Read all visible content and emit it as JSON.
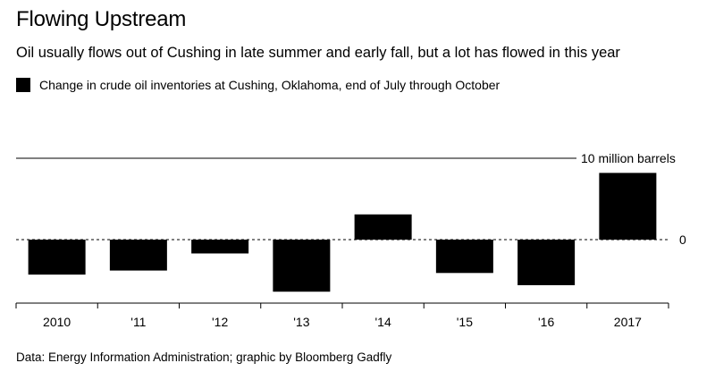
{
  "title": "Flowing Upstream",
  "subtitle": "Oil usually flows out of Cushing in late summer and early fall, but a lot has flowed in this year",
  "legend": {
    "label": "Change in crude oil inventories at Cushing, Oklahoma, end of July through October",
    "color": "#000000"
  },
  "source": "Data: Energy Information Administration; graphic by Bloomberg Gadfly",
  "chart_data": {
    "type": "bar",
    "categories": [
      "2010",
      "'11",
      "'12",
      "'13",
      "'14",
      "'15",
      "'16",
      "2017"
    ],
    "values": [
      -4.3,
      -3.8,
      -1.7,
      -6.4,
      3.1,
      -4.1,
      -5.6,
      8.2
    ],
    "ylim": [
      -7.5,
      10
    ],
    "gridline_labels": [
      {
        "value": 10,
        "label": "10 million barrels",
        "style": "solid"
      },
      {
        "value": 0,
        "label": "0",
        "style": "dashed"
      }
    ],
    "series": [
      {
        "name": "Change in crude oil inventories at Cushing, Oklahoma, end of July through October",
        "color": "#000000"
      }
    ]
  }
}
